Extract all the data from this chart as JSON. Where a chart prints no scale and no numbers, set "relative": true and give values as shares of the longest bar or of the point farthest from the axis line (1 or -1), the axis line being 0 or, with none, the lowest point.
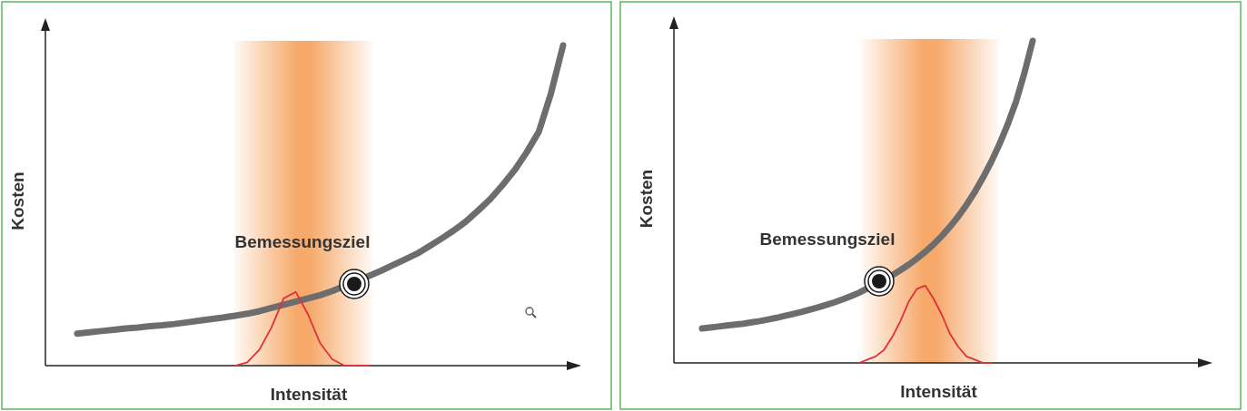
{
  "chart_data": [
    {
      "type": "line",
      "relative": true,
      "xlabel": "Intensität",
      "ylabel": "Kosten",
      "categories": [
        null,
        null,
        null,
        null,
        null,
        null,
        null,
        null,
        null,
        null,
        null,
        null,
        null,
        null,
        null,
        null,
        null,
        null,
        null,
        null,
        null,
        null,
        null,
        null,
        null,
        null,
        null,
        null,
        null,
        null,
        null,
        null,
        null,
        null,
        null,
        null,
        null,
        null,
        null,
        null,
        null
      ],
      "series": [
        {
          "type": "line",
          "color": "#6d6d6d",
          "values": [
            0.1,
            0.104,
            0.108,
            0.112,
            0.116,
            0.119,
            0.123,
            0.126,
            0.13,
            0.135,
            0.14,
            0.145,
            0.15,
            0.156,
            0.162,
            0.17,
            0.18,
            0.19,
            0.2,
            0.21,
            0.22,
            0.233,
            null,
            null,
            0.28,
            0.296,
            0.314,
            0.332,
            0.35,
            0.373,
            0.397,
            0.422,
            0.45,
            0.484,
            0.52,
            0.563,
            0.61,
            0.666,
            0.73,
            0.85,
            1.0
          ]
        },
        {
          "type": "line",
          "color": "#e0303a",
          "values": [
            null,
            null,
            null,
            null,
            null,
            null,
            null,
            null,
            null,
            null,
            null,
            null,
            null,
            0,
            0.01,
            0.05,
            0.12,
            0.21,
            0.23,
            0.16,
            0.07,
            0.02,
            0,
            0,
            0,
            null,
            null,
            null,
            null,
            null,
            null,
            null,
            null,
            null,
            null,
            null,
            null,
            null,
            null,
            null,
            null
          ]
        }
      ],
      "annotations": [
        "Bemessungsziel"
      ]
    },
    {
      "type": "line",
      "relative": true,
      "xlabel": "Intensität",
      "ylabel": "Kosten",
      "categories": [
        null,
        null,
        null,
        null,
        null,
        null,
        null,
        null,
        null,
        null,
        null,
        null,
        null,
        null,
        null,
        null,
        null,
        null,
        null,
        null,
        null,
        null,
        null,
        null,
        null,
        null,
        null,
        null,
        null,
        null,
        null,
        null,
        null,
        null,
        null,
        null,
        null,
        null,
        null,
        null,
        null
      ],
      "series": [
        {
          "type": "line",
          "color": "#6d6d6d",
          "values": [
            0.107,
            0.11,
            0.113,
            0.116,
            0.119,
            0.122,
            0.126,
            0.13,
            0.135,
            0.14,
            0.146,
            0.152,
            0.158,
            0.165,
            0.172,
            0.18,
            0.188,
            0.197,
            0.207,
            0.218,
            null,
            null,
            null,
            0.272,
            0.288,
            0.305,
            0.324,
            0.345,
            0.368,
            0.394,
            0.423,
            0.455,
            0.491,
            0.531,
            0.576,
            0.625,
            0.68,
            0.742,
            0.812,
            0.9,
            1.0
          ]
        },
        {
          "type": "line",
          "color": "#e0303a",
          "values": [
            null,
            null,
            null,
            null,
            null,
            null,
            null,
            null,
            null,
            null,
            null,
            null,
            null,
            null,
            null,
            null,
            null,
            null,
            null,
            0,
            0.01,
            0.02,
            0.04,
            0.08,
            0.13,
            0.19,
            0.23,
            0.24,
            0.2,
            0.15,
            0.09,
            0.05,
            0.02,
            0.01,
            0,
            0,
            null,
            null,
            null,
            null,
            null
          ]
        }
      ],
      "annotations": [
        "Bemessungsziel"
      ]
    }
  ]
}
